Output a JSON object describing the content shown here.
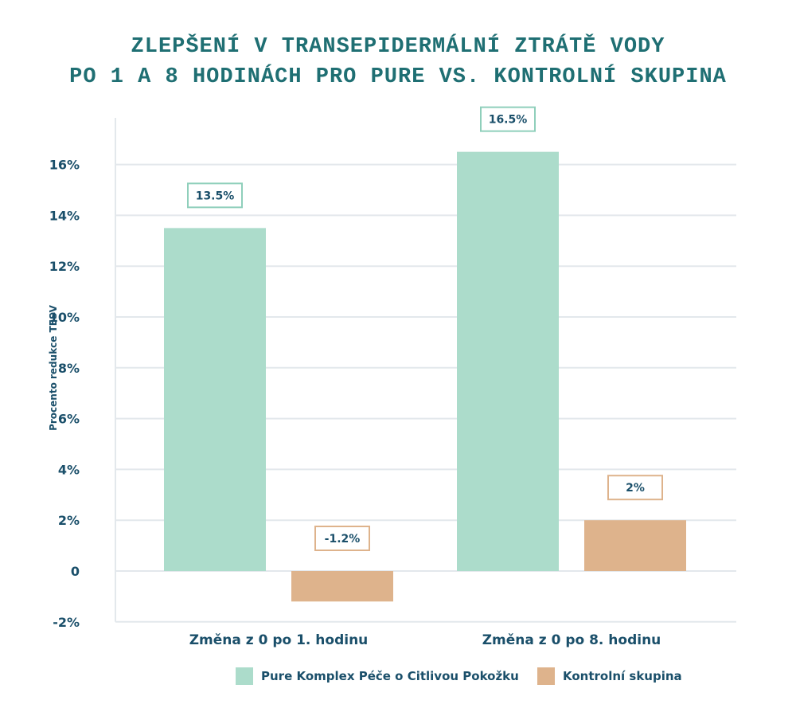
{
  "chart_data": {
    "type": "bar",
    "title_line1": "ZLEPŠENÍ V TRANSEPIDERMÁLNÍ ZTRÁTĚ VODY",
    "title_line2": "PO 1 A 8 HODINÁCH PRO PURE VS. KONTROLNÍ SKUPINA",
    "ylabel": "Procento redukce TESV",
    "xlabel": "",
    "ylim": [
      -2,
      18
    ],
    "yticks": [
      -2,
      0,
      2,
      4,
      6,
      8,
      10,
      12,
      14,
      16
    ],
    "ytick_labels": [
      "-2%",
      "0",
      "2%",
      "4%",
      "6%",
      "8%",
      "10%",
      "12%",
      "14%",
      "16%"
    ],
    "categories": [
      "Změna z 0 po 1. hodinu",
      "Změna z 0 po 8. hodinu"
    ],
    "series": [
      {
        "name": "Pure Komplex Péče o Citlivou Pokožku",
        "color": "#acdccb",
        "values": [
          13.5,
          16.5
        ],
        "labels": [
          "13.5%",
          "16.5%"
        ]
      },
      {
        "name": "Kontrolní skupina",
        "color": "#deb38c",
        "values": [
          -1.2,
          2
        ],
        "labels": [
          "-1.2%",
          "2%"
        ]
      }
    ],
    "grid": true,
    "legend_position": "bottom"
  },
  "colors": {
    "title": "#1f6f73",
    "text": "#1a4f6a",
    "grid": "#e3e8ec",
    "pure_label_border": "#8fcfbb",
    "control_label_border": "#deb38c"
  }
}
